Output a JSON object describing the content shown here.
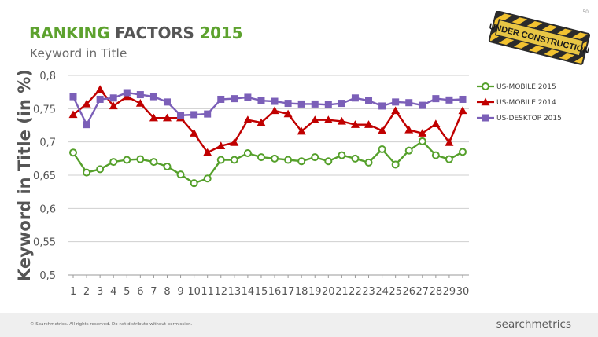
{
  "page": {
    "number": "50"
  },
  "header": {
    "title_part1": "RANKING",
    "title_part2": "FACTORS",
    "title_part3": "2015",
    "subtitle": "Keyword in Title"
  },
  "badge": {
    "text": "UNDER CONSTRUCTION"
  },
  "footer": {
    "copyright": "© Searchmetrics. All rights reserved. Do not distribute without permission.",
    "brand": "searchmetrics"
  },
  "chart_data": {
    "type": "line",
    "ylabel": "Keyword in Title (in %)",
    "xlabel": "",
    "x": [
      1,
      2,
      3,
      4,
      5,
      6,
      7,
      8,
      9,
      10,
      11,
      12,
      13,
      14,
      15,
      16,
      17,
      18,
      19,
      20,
      21,
      22,
      23,
      24,
      25,
      26,
      27,
      28,
      29,
      30
    ],
    "ylim": [
      0.5,
      0.8
    ],
    "yticks": [
      0.5,
      0.55,
      0.6,
      0.65,
      0.7,
      0.75,
      0.8
    ],
    "ytick_labels": [
      "0,5",
      "0,55",
      "0,6",
      "0,65",
      "0,7",
      "0,75",
      "0,8"
    ],
    "grid": "horizontal",
    "legend_position": "right",
    "series": [
      {
        "name": "US-MOBILE 2015",
        "color": "#55a02b",
        "marker": "circle",
        "values": [
          0.684,
          0.654,
          0.659,
          0.67,
          0.673,
          0.674,
          0.67,
          0.663,
          0.651,
          0.638,
          0.645,
          0.673,
          0.673,
          0.683,
          0.677,
          0.675,
          0.673,
          0.671,
          0.677,
          0.671,
          0.68,
          0.675,
          0.669,
          0.689,
          0.666,
          0.687,
          0.701,
          0.68,
          0.674,
          0.685
        ]
      },
      {
        "name": "US-MOBILE 2014",
        "color": "#c00000",
        "marker": "triangle",
        "values": [
          0.741,
          0.757,
          0.779,
          0.754,
          0.768,
          0.758,
          0.736,
          0.736,
          0.736,
          0.713,
          0.684,
          0.694,
          0.699,
          0.733,
          0.729,
          0.747,
          0.742,
          0.716,
          0.733,
          0.733,
          0.731,
          0.726,
          0.726,
          0.717,
          0.747,
          0.718,
          0.713,
          0.727,
          0.699,
          0.747
        ]
      },
      {
        "name": "US-DESKTOP 2015",
        "color": "#7b5fb8",
        "marker": "square",
        "values": [
          0.768,
          0.726,
          0.764,
          0.766,
          0.774,
          0.771,
          0.768,
          0.76,
          0.74,
          0.741,
          0.742,
          0.764,
          0.765,
          0.767,
          0.762,
          0.761,
          0.758,
          0.757,
          0.757,
          0.756,
          0.758,
          0.766,
          0.762,
          0.754,
          0.76,
          0.759,
          0.755,
          0.765,
          0.763,
          0.764
        ]
      }
    ]
  }
}
